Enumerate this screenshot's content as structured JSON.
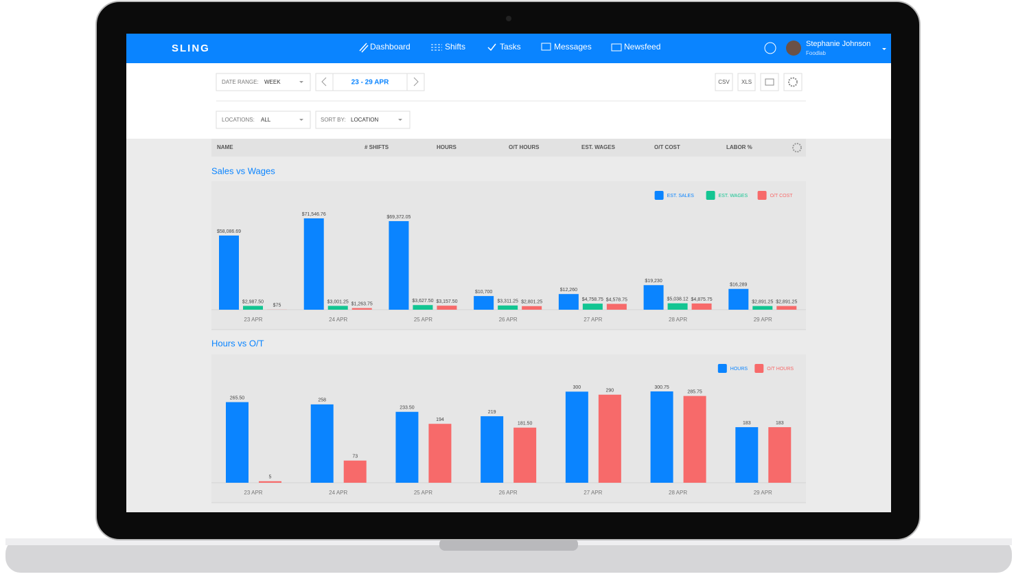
{
  "header": {
    "logo": "SLING",
    "nav": [
      "Dashboard",
      "Shifts",
      "Tasks",
      "Messages",
      "Newsfeed"
    ],
    "user": {
      "name": "Stephanie Johnson",
      "org": "Foodlab"
    }
  },
  "toolbar": {
    "date_range_label": "DATE RANGE:",
    "date_range_value": "WEEK",
    "period": "23 - 29 APR",
    "exports": [
      "CSV",
      "XLS"
    ],
    "locations_label": "LOCATIONS:",
    "locations_value": "ALL",
    "sort_label": "SORT BY:",
    "sort_value": "LOCATION"
  },
  "table": {
    "columns": [
      "NAME",
      "# SHIFTS",
      "HOURS",
      "O/T HOURS",
      "EST. WAGES",
      "O/T COST",
      "LABOR %"
    ]
  },
  "chart_data": [
    {
      "type": "bar",
      "title": "Sales vs Wages",
      "categories": [
        "23 APR",
        "24 APR",
        "25 APR",
        "26 APR",
        "27 APR",
        "28 APR",
        "29 APR"
      ],
      "series": [
        {
          "name": "EST. SALES",
          "color": "#0a84ff",
          "values": [
            58086.69,
            71546.76,
            69372.05,
            10700,
            12260,
            19230,
            16289
          ],
          "value_labels": [
            "$58,086.69",
            "$71,546.76",
            "$69,372.05",
            "$10,700",
            "$12,260",
            "$19,230",
            "$16,289"
          ]
        },
        {
          "name": "EST. WAGES",
          "color": "#13c592",
          "values": [
            2987.5,
            3001.25,
            3627.5,
            3311.25,
            4758.75,
            5038.12,
            2891.25
          ],
          "value_labels": [
            "$2,987.50",
            "$3,001.25",
            "$3,627.50",
            "$3,311.25",
            "$4,758.75",
            "$5,038.12",
            "$2,891.25"
          ]
        },
        {
          "name": "O/T COST",
          "color": "#f76a6a",
          "values": [
            75,
            1263.75,
            3157.5,
            2801.25,
            4578.75,
            4875.75,
            2891.25
          ],
          "value_labels": [
            "$75",
            "$1,263.75",
            "$3,157.50",
            "$2,801.25",
            "$4,578.75",
            "$4,875.75",
            "$2,891.25"
          ]
        }
      ]
    },
    {
      "type": "bar",
      "title": "Hours vs O/T",
      "categories": [
        "23 APR",
        "24 APR",
        "25 APR",
        "26 APR",
        "27 APR",
        "28 APR",
        "29 APR"
      ],
      "series": [
        {
          "name": "HOURS",
          "color": "#0a84ff",
          "values": [
            265.5,
            258,
            233.5,
            219,
            300,
            300.75,
            183
          ],
          "value_labels": [
            "265.50",
            "258",
            "233.50",
            "219",
            "300",
            "300.75",
            "183"
          ]
        },
        {
          "name": "O/T HOURS",
          "color": "#f76a6a",
          "values": [
            5,
            73,
            194,
            181.5,
            290,
            285.75,
            183
          ],
          "value_labels": [
            "5",
            "73",
            "194",
            "181.50",
            "290",
            "285.75",
            "183"
          ]
        }
      ]
    }
  ]
}
